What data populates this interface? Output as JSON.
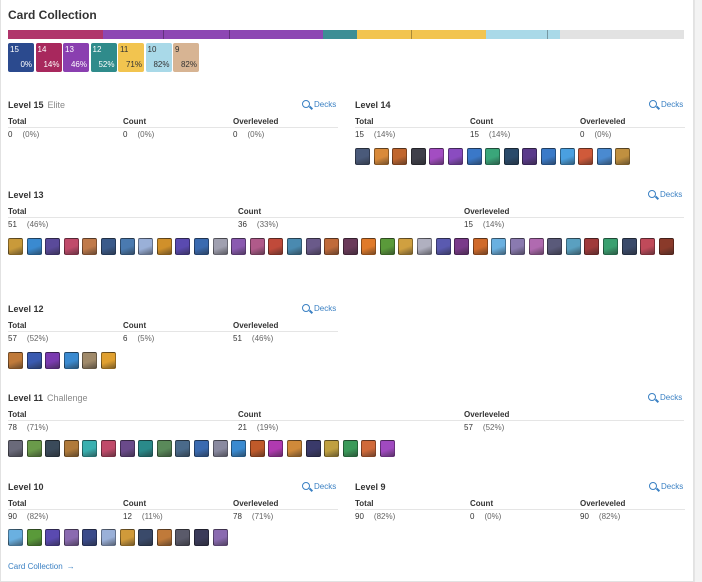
{
  "title": "Card Collection",
  "progress": [
    {
      "color": "#b0356b",
      "fraction": 0.141
    },
    {
      "color": "#8d47b3",
      "fraction": 0.325,
      "ticks": [
        0.27,
        0.57
      ]
    },
    {
      "color": "#3d8e95",
      "fraction": 0.051
    },
    {
      "color": "#f2c44f",
      "fraction": 0.19,
      "ticks": [
        0.42
      ]
    },
    {
      "color": "#a9d9e8",
      "fraction": 0.109,
      "ticks": [
        0.83
      ]
    },
    {
      "color": "#e2e2e2",
      "fraction": 0.184
    }
  ],
  "chips": [
    {
      "level": "15",
      "pct": "0%",
      "color": "#2b4a8e",
      "light": false
    },
    {
      "level": "14",
      "pct": "14%",
      "color": "#a8285d",
      "light": false
    },
    {
      "level": "13",
      "pct": "46%",
      "color": "#8a3fb0",
      "light": false
    },
    {
      "level": "12",
      "pct": "52%",
      "color": "#2f8b8b",
      "light": false
    },
    {
      "level": "11",
      "pct": "71%",
      "color": "#f2c44f",
      "light": true
    },
    {
      "level": "10",
      "pct": "82%",
      "color": "#a9d9e8",
      "light": true
    },
    {
      "level": "9",
      "pct": "82%",
      "color": "#d7b493",
      "light": true
    }
  ],
  "labels": {
    "decks": "Decks",
    "total": "Total",
    "count": "Count",
    "overleveled": "Overleveled",
    "footer_link": "Card Collection",
    "footer_arrow": "→"
  },
  "sections": [
    {
      "key": "l15",
      "title": "Level 15",
      "subtitle": "Elite",
      "total": "0",
      "total_pct": "(0%)",
      "count": "0",
      "count_pct": "(0%)",
      "over": "0",
      "over_pct": "(0%)",
      "icons": []
    },
    {
      "key": "l14",
      "title": "Level 14",
      "subtitle": "",
      "total": "15",
      "total_pct": "(14%)",
      "count": "15",
      "count_pct": "(14%)",
      "over": "0",
      "over_pct": "(0%)",
      "icons": [
        "#4a5a7a",
        "#d98a3a",
        "#c0662e",
        "#3f3f4a",
        "#a34dc2",
        "#8a4cc0",
        "#3a78c8",
        "#3aa67a",
        "#2a4a6a",
        "#5a3a8a",
        "#3a7ac8",
        "#4aa0e0",
        "#d05a3a",
        "#4a8ad0",
        "#c09040"
      ]
    },
    {
      "key": "l13",
      "title": "Level 13",
      "subtitle": "",
      "total": "51",
      "total_pct": "(46%)",
      "count": "36",
      "count_pct": "(33%)",
      "over": "15",
      "over_pct": "(14%)",
      "icons": [
        "#c99a3a",
        "#3a8ad0",
        "#5a4a9a",
        "#c04a6a",
        "#c07a4a",
        "#3a5a8a",
        "#4a7ab0",
        "#9ab0d8",
        "#d0902a",
        "#5a4ab0",
        "#3a6ab0",
        "#a0a0b0",
        "#8a5ab0",
        "#b05a8a",
        "#c04a3a",
        "#4a8ab0",
        "#6a5a8a",
        "#c06a3a",
        "#6a3a5a",
        "#e07a2a",
        "#5a9a3a",
        "#d0a040",
        "#b0b0c0",
        "#5a5ab0",
        "#7a3a8a",
        "#d06a2a",
        "#6ab0e0",
        "#8a7ab0",
        "#b06ab0",
        "#5a5a7a",
        "#5aa0c0",
        "#a03a3a",
        "#3aa070",
        "#3a4a6a",
        "#c04a5a",
        "#8a3a2a"
      ]
    },
    {
      "key": "l12",
      "title": "Level 12",
      "subtitle": "",
      "total": "57",
      "total_pct": "(52%)",
      "count": "6",
      "count_pct": "(5%)",
      "over": "51",
      "over_pct": "(46%)",
      "icons": [
        "#c07a3a",
        "#3a5ab0",
        "#7a3ab0",
        "#3a8ad0",
        "#a08a6a",
        "#e0a030"
      ]
    },
    {
      "key": "l11",
      "title": "Level 11",
      "subtitle": "Challenge",
      "total": "78",
      "total_pct": "(71%)",
      "count": "21",
      "count_pct": "(19%)",
      "over": "57",
      "over_pct": "(52%)",
      "icons": [
        "#6a6a7a",
        "#6a9a4a",
        "#3a4a5a",
        "#b07a3a",
        "#3ab0b0",
        "#c04a6a",
        "#6a4a8a",
        "#2a8a8a",
        "#5a8a5a",
        "#4a6a8a",
        "#3a6ab0",
        "#8a8aa0",
        "#3a8ad0",
        "#c05a2a",
        "#b03ab0",
        "#d08a3a",
        "#3a3a6a",
        "#c0a040",
        "#3a9a5a",
        "#d06a3a",
        "#a04ac0"
      ]
    },
    {
      "key": "l10",
      "title": "Level 10",
      "subtitle": "",
      "total": "90",
      "total_pct": "(82%)",
      "count": "12",
      "count_pct": "(11%)",
      "over": "78",
      "over_pct": "(71%)",
      "icons": [
        "#6ab0e0",
        "#5a9a3a",
        "#5a4ab0",
        "#8a6ab0",
        "#3a4a8a",
        "#9ab0d8",
        "#d09a3a",
        "#3a4a6a",
        "#c07a3a",
        "#5a5a6a",
        "#3a3a5a",
        "#8a6ab0"
      ]
    },
    {
      "key": "l9",
      "title": "Level 9",
      "subtitle": "",
      "total": "90",
      "total_pct": "(82%)",
      "count": "0",
      "count_pct": "(0%)",
      "over": "90",
      "over_pct": "(82%)",
      "icons": []
    }
  ]
}
